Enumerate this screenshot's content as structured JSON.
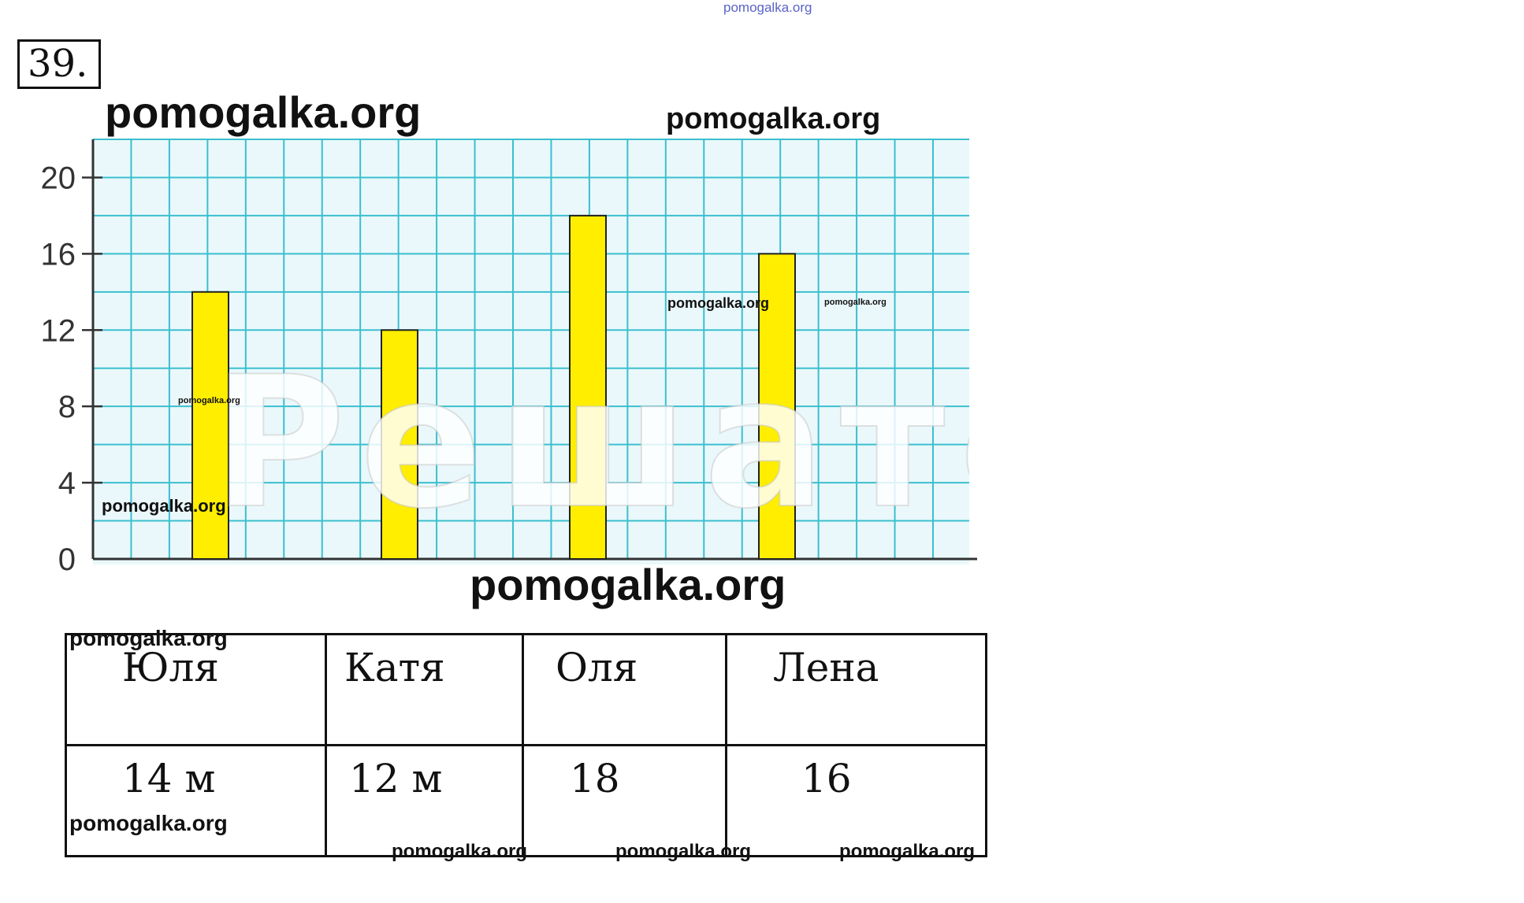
{
  "problem_number": "39.",
  "watermarks": {
    "site": "pomogalka.org",
    "big_text": "Решател"
  },
  "chart_data": {
    "type": "bar",
    "categories": [
      "Юля",
      "Катя",
      "Оля",
      "Лена"
    ],
    "values": [
      14,
      12,
      18,
      16
    ],
    "y_ticks": [
      "0",
      "4",
      "8",
      "12",
      "16",
      "20"
    ],
    "ylim": [
      0,
      22
    ],
    "grid": true,
    "colors": {
      "bar": "#ffee00",
      "bar_stroke": "#222222",
      "grid": "#3bbfcf",
      "background": "#eaf8fb",
      "axis": "#333333"
    }
  },
  "table": {
    "names": [
      "Юля",
      "Катя",
      "Оля",
      "Лена"
    ],
    "values": [
      "14 м",
      "12 м",
      "18",
      "16"
    ]
  }
}
